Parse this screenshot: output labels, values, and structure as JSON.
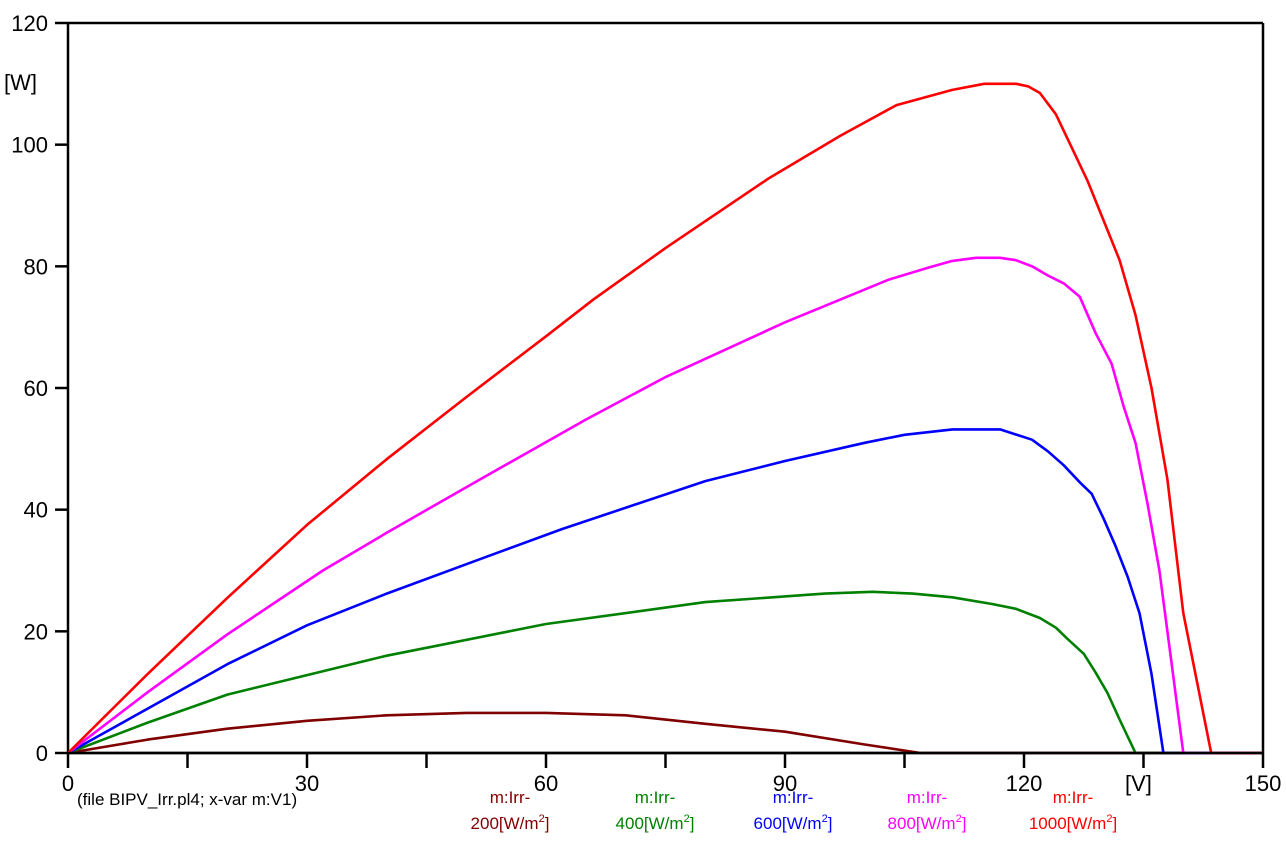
{
  "chart_data": {
    "type": "line",
    "title": "",
    "xlabel": "[V]",
    "ylabel": "[W]",
    "caption": "(file BIPV_Irr.pl4; x-var m:V1)",
    "xlim": [
      0,
      150
    ],
    "ylim": [
      0,
      120
    ],
    "x_ticks": [
      0,
      30,
      60,
      90,
      120,
      150
    ],
    "x_minor_ticks": [
      15,
      45,
      75,
      105,
      135
    ],
    "x_tick_labels": [
      "0",
      "30",
      "60",
      "90",
      "120",
      "150"
    ],
    "y_ticks": [
      0,
      20,
      40,
      60,
      80,
      100,
      120
    ],
    "y_tick_labels": [
      "0",
      "20",
      "40",
      "60",
      "80",
      "100",
      "120"
    ],
    "grid": false,
    "legend_position": "bottom",
    "series": [
      {
        "name": "m:Irr-200[W/m2]",
        "legend_line1": "m:Irr-",
        "legend_line2": "200[W/m",
        "legend_sup": "2",
        "legend_close": "]",
        "color": "#800000",
        "points": [
          [
            0,
            0
          ],
          [
            10,
            2.2
          ],
          [
            20,
            4
          ],
          [
            30,
            5.3
          ],
          [
            40,
            6.2
          ],
          [
            50,
            6.6
          ],
          [
            60,
            6.6
          ],
          [
            70,
            6.2
          ],
          [
            80,
            4.8
          ],
          [
            90,
            3.5
          ],
          [
            100,
            1.4
          ],
          [
            107,
            0
          ],
          [
            150,
            0
          ]
        ]
      },
      {
        "name": "m:Irr-400[W/m2]",
        "legend_line1": "m:Irr-",
        "legend_line2": "400[W/m",
        "legend_sup": "2",
        "legend_close": "]",
        "color": "#008000",
        "points": [
          [
            0,
            0
          ],
          [
            10,
            5
          ],
          [
            20,
            9.6
          ],
          [
            30,
            12.8
          ],
          [
            40,
            16
          ],
          [
            45,
            17.3
          ],
          [
            60,
            21.2
          ],
          [
            80,
            24.8
          ],
          [
            95,
            26.2
          ],
          [
            101,
            26.5
          ],
          [
            106,
            26.2
          ],
          [
            111,
            25.6
          ],
          [
            116,
            24.5
          ],
          [
            119,
            23.7
          ],
          [
            122,
            22.2
          ],
          [
            124,
            20.6
          ],
          [
            125.5,
            18.7
          ],
          [
            127.5,
            16.3
          ],
          [
            129,
            13.2
          ],
          [
            130.5,
            9.8
          ],
          [
            132,
            5.5
          ],
          [
            134,
            0
          ],
          [
            150,
            0
          ]
        ]
      },
      {
        "name": "m:Irr-600[W/m2]",
        "legend_line1": "m:Irr-",
        "legend_line2": "600[W/m",
        "legend_sup": "2",
        "legend_close": "]",
        "color": "#0000ff",
        "points": [
          [
            0,
            0
          ],
          [
            10,
            7.3
          ],
          [
            20,
            14.6
          ],
          [
            30,
            21
          ],
          [
            40,
            26.2
          ],
          [
            52,
            32
          ],
          [
            62,
            36.8
          ],
          [
            80,
            44.7
          ],
          [
            90,
            48
          ],
          [
            100,
            51
          ],
          [
            105,
            52.3
          ],
          [
            111,
            53.2
          ],
          [
            117,
            53.2
          ],
          [
            121,
            51.5
          ],
          [
            123,
            49.6
          ],
          [
            125,
            47.3
          ],
          [
            127,
            44.5
          ],
          [
            128.5,
            42.6
          ],
          [
            130,
            38.5
          ],
          [
            131.5,
            34
          ],
          [
            133,
            29
          ],
          [
            134.5,
            23
          ],
          [
            136,
            13
          ],
          [
            137.5,
            0
          ],
          [
            150,
            0
          ]
        ]
      },
      {
        "name": "m:Irr-800[W/m2]",
        "legend_line1": "m:Irr-",
        "legend_line2": "800[W/m",
        "legend_sup": "2",
        "legend_close": "]",
        "color": "#ff00ff",
        "points": [
          [
            0,
            0
          ],
          [
            10,
            10
          ],
          [
            20,
            19.5
          ],
          [
            32,
            30
          ],
          [
            40,
            36.2
          ],
          [
            50,
            43.7
          ],
          [
            65,
            54.8
          ],
          [
            75,
            61.8
          ],
          [
            90,
            70.8
          ],
          [
            103,
            77.8
          ],
          [
            108,
            79.8
          ],
          [
            111,
            80.9
          ],
          [
            114,
            81.4
          ],
          [
            117,
            81.4
          ],
          [
            119,
            81
          ],
          [
            121,
            80
          ],
          [
            123,
            78.5
          ],
          [
            125,
            77.2
          ],
          [
            127,
            75
          ],
          [
            129,
            69
          ],
          [
            131,
            64
          ],
          [
            132.5,
            57
          ],
          [
            134,
            51
          ],
          [
            135.5,
            41
          ],
          [
            137,
            30
          ],
          [
            138.5,
            15
          ],
          [
            140,
            0
          ],
          [
            150,
            0
          ]
        ]
      },
      {
        "name": "m:Irr-1000[W/m2]",
        "legend_line1": "m:Irr-",
        "legend_line2": "1000[W/m",
        "legend_sup": "2",
        "legend_close": "]",
        "color": "#ff0000",
        "points": [
          [
            0,
            0
          ],
          [
            10,
            13
          ],
          [
            20,
            25.5
          ],
          [
            30,
            37.5
          ],
          [
            40,
            48.3
          ],
          [
            50,
            58.5
          ],
          [
            60,
            68.5
          ],
          [
            66,
            74.6
          ],
          [
            75,
            83
          ],
          [
            88,
            94.5
          ],
          [
            97,
            101.5
          ],
          [
            104,
            106.5
          ],
          [
            111,
            109
          ],
          [
            115,
            110
          ],
          [
            119,
            110
          ],
          [
            120.5,
            109.6
          ],
          [
            122,
            108.5
          ],
          [
            124,
            105
          ],
          [
            126,
            99.5
          ],
          [
            128,
            94
          ],
          [
            130,
            87.5
          ],
          [
            132,
            81
          ],
          [
            134,
            72
          ],
          [
            136,
            60
          ],
          [
            138,
            45
          ],
          [
            140,
            23
          ],
          [
            143.5,
            0
          ],
          [
            150,
            0
          ]
        ]
      }
    ]
  }
}
